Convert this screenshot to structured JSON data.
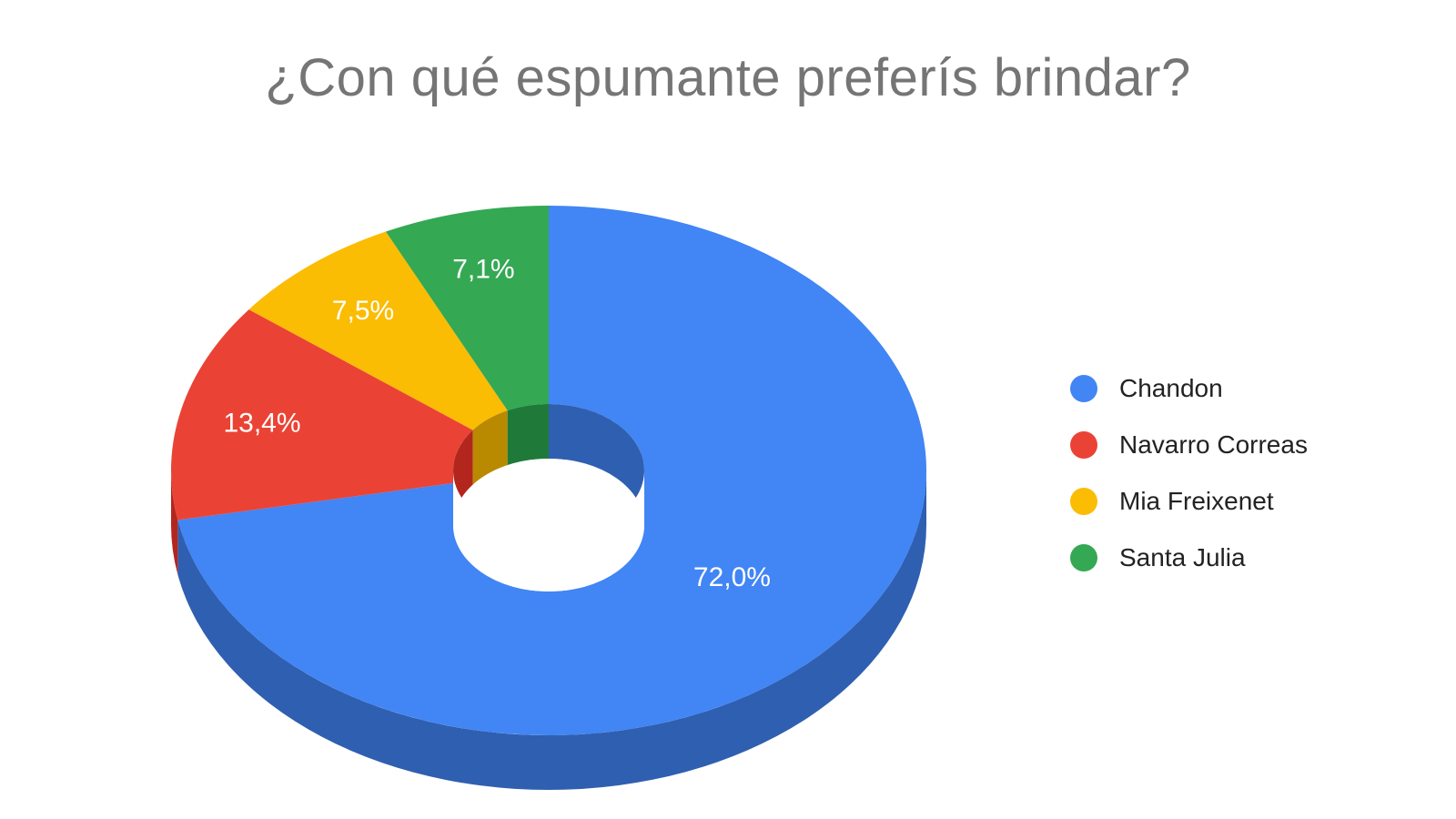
{
  "chart_data": {
    "type": "pie",
    "style": "3d-donut",
    "title": "¿Con qué espumante preferís brindar?",
    "legend_position": "right",
    "slices": [
      {
        "label": "Chandon",
        "value": 72.0,
        "display": "72,0%",
        "color": "#4285f4",
        "side_color": "#2f5fb0"
      },
      {
        "label": "Navarro Correas",
        "value": 13.4,
        "display": "13,4%",
        "color": "#ea4335",
        "side_color": "#b3261e"
      },
      {
        "label": "Mia Freixenet",
        "value": 7.5,
        "display": "7,5%",
        "color": "#fbbc04",
        "side_color": "#b98a00"
      },
      {
        "label": "Santa Julia",
        "value": 7.1,
        "display": "7,1%",
        "color": "#34a853",
        "side_color": "#1f7a39"
      }
    ]
  }
}
